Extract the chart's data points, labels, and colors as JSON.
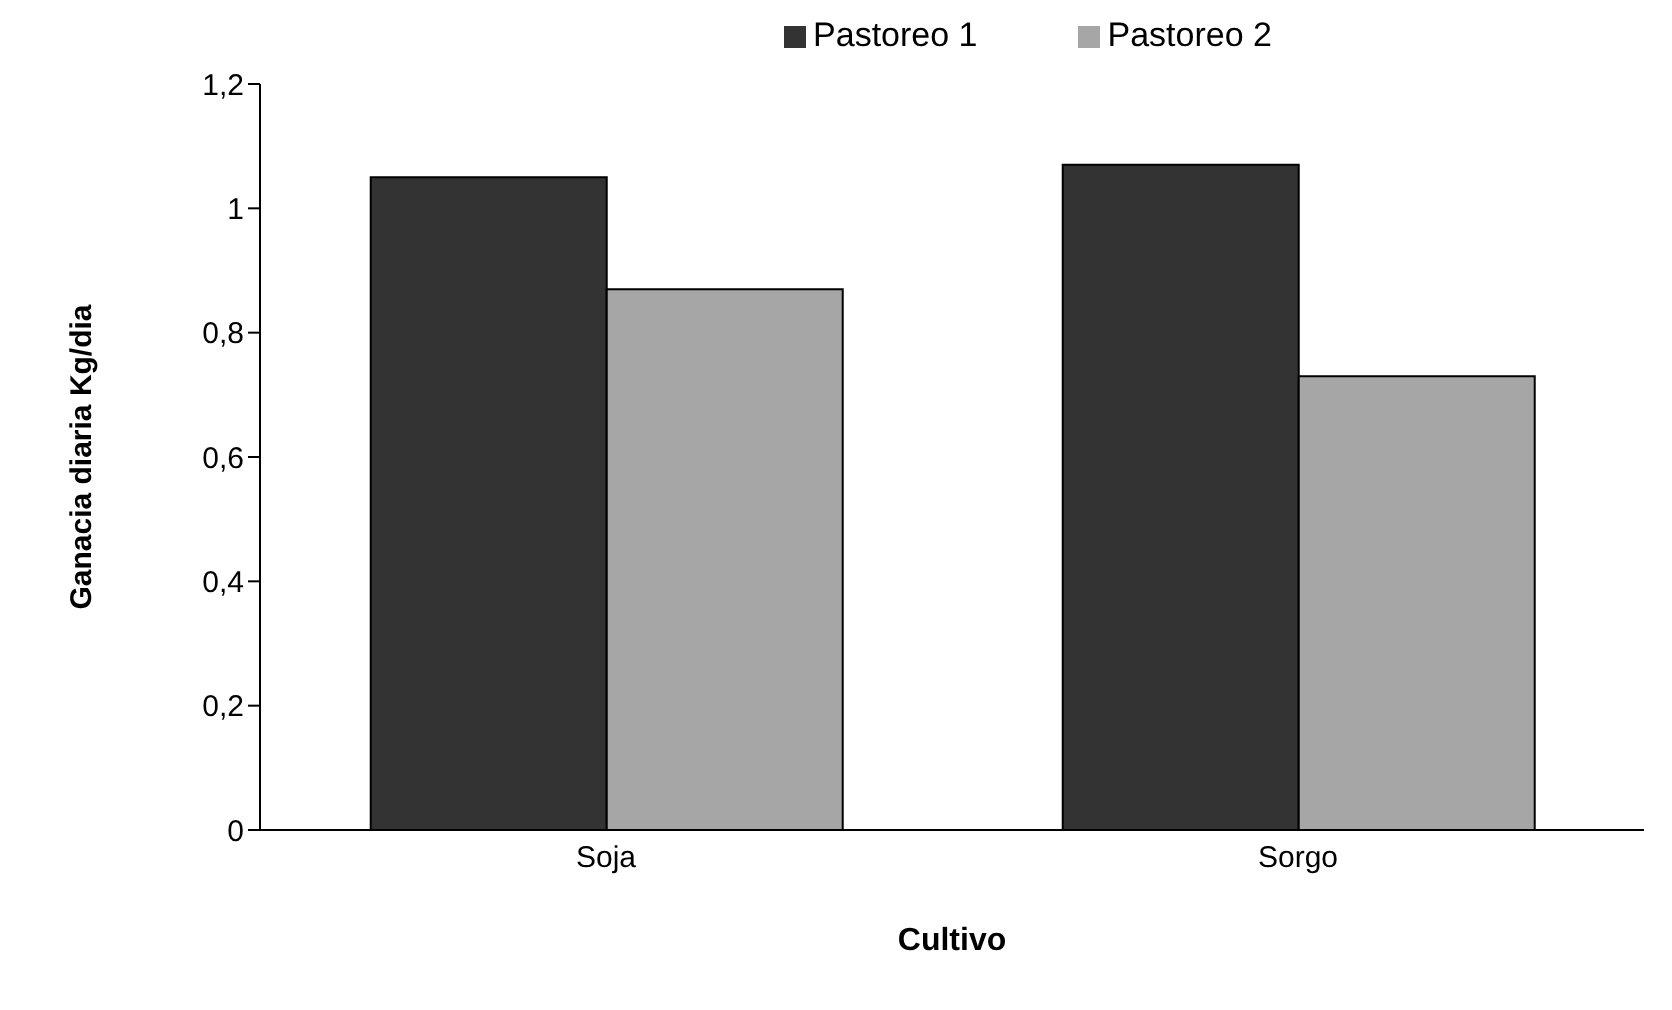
{
  "chart_data": {
    "type": "bar",
    "xlabel": "Cultivo",
    "ylabel": "Ganacia diaria Kg/dia",
    "categories": [
      "Soja",
      "Sorgo"
    ],
    "series": [
      {
        "name": "Pastoreo 1",
        "color": "#333333",
        "values": [
          1.05,
          1.07
        ]
      },
      {
        "name": "Pastoreo 2",
        "color": "#a6a6a6",
        "values": [
          0.87,
          0.73
        ]
      }
    ],
    "ylim": [
      0,
      1.2
    ],
    "yticks": [
      {
        "value": 0,
        "label": "0"
      },
      {
        "value": 0.2,
        "label": "0,2"
      },
      {
        "value": 0.4,
        "label": "0,4"
      },
      {
        "value": 0.6,
        "label": "0,6"
      },
      {
        "value": 0.8,
        "label": "0,8"
      },
      {
        "value": 1,
        "label": "1"
      },
      {
        "value": 1.2,
        "label": "1,2"
      }
    ],
    "grid": false,
    "legend": "top right"
  }
}
